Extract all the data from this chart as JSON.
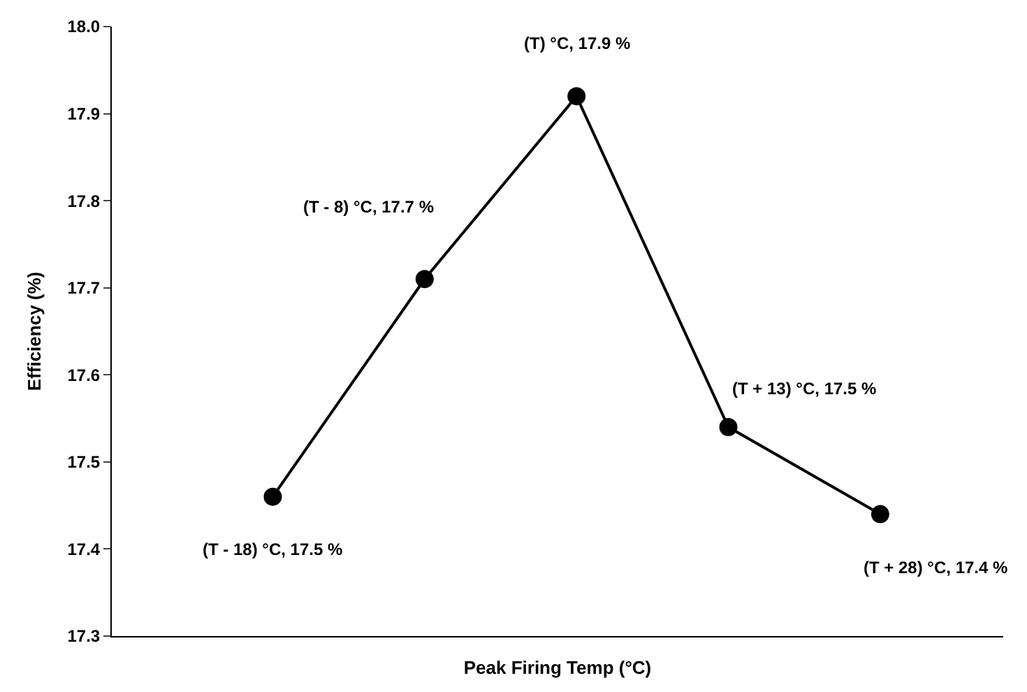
{
  "chart_data": {
    "type": "line",
    "categories": [
      null,
      null,
      null,
      null,
      null
    ],
    "values": [
      17.46,
      17.71,
      17.92,
      17.54,
      17.44
    ],
    "color": "#000000",
    "marker": "circle",
    "line_style": "solid",
    "xlabel": "Peak Firing Temp (°C)",
    "ylabel": "Efficiency (%)",
    "ylim": [
      17.3,
      18.0
    ],
    "yticks": [
      {
        "value": 17.3,
        "label": "17.3"
      },
      {
        "value": 17.4,
        "label": "17.4"
      },
      {
        "value": 17.5,
        "label": "17.5"
      },
      {
        "value": 17.6,
        "label": "17.6"
      },
      {
        "value": 17.7,
        "label": "17.7"
      },
      {
        "value": 17.8,
        "label": "17.8"
      },
      {
        "value": 17.9,
        "label": "17.9"
      },
      {
        "value": 18.0,
        "label": "18.0"
      }
    ],
    "grid": false,
    "legend": false,
    "annotations": [
      "(T - 18) °C, 17.5 %",
      "(T - 8) °C, 17.7 %",
      "(T) °C, 17.9 %",
      "(T + 13) °C, 17.5 %",
      "(T + 28) °C, 17.4 %"
    ]
  }
}
